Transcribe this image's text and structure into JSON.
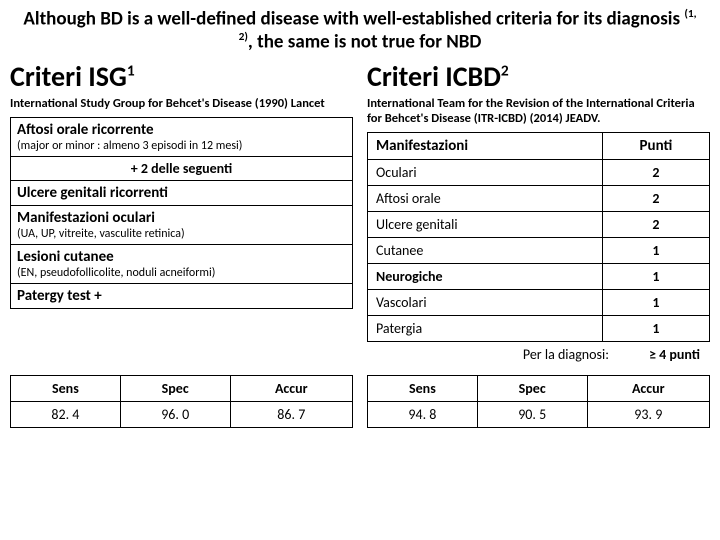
{
  "banner_html": "Although BD is a well-defined disease with well-established criteria for its diagnosis <sup>(1, 2)</sup>, the same is not true for NBD",
  "left": {
    "title_html": "Criteri ISG<sup>1</sup>",
    "subtitle": "International Study Group for Behcet's Disease (1990) Lancet",
    "rows": [
      {
        "major": "Aftosi orale ricorrente",
        "minor": "(major or minor : almeno 3 episodi in 12 mesi)"
      },
      {
        "center": "+ 2 delle seguenti"
      },
      {
        "major": "Ulcere genitali ricorrenti"
      },
      {
        "major": "Manifestazioni oculari",
        "minor": "(UA, UP, vitreite, vasculite retinica)"
      },
      {
        "major": "Lesioni cutanee",
        "minor": "(EN, pseudofollicolite, noduli acneiformi)"
      },
      {
        "major": "Patergy test +"
      }
    ],
    "metrics": {
      "headers": [
        "Sens",
        "Spec",
        "Accur"
      ],
      "values": [
        "82. 4",
        "96. 0",
        "86. 7"
      ]
    }
  },
  "right": {
    "title_html": "Criteri ICBD<sup>2</sup>",
    "subtitle": "International Team for the Revision of the International Criteria for Behcet's Disease (ITR-ICBD) (2014) JEADV.",
    "header": [
      "Manifestazioni",
      "Punti"
    ],
    "rows": [
      {
        "label": "Oculari",
        "pts": "2",
        "bold": false
      },
      {
        "label": "Aftosi orale",
        "pts": "2",
        "bold": false
      },
      {
        "label": "Ulcere genitali",
        "pts": "2",
        "bold": false
      },
      {
        "label": "Cutanee",
        "pts": "1",
        "bold": false
      },
      {
        "label": "Neurogiche",
        "pts": "1",
        "bold": true
      },
      {
        "label": "Vascolari",
        "pts": "1",
        "bold": false
      },
      {
        "label": "Patergia",
        "pts": "1",
        "bold": false
      }
    ],
    "diag_label": "Per la diagnosi:",
    "diag_value": "≥ 4 punti",
    "metrics": {
      "headers": [
        "Sens",
        "Spec",
        "Accur"
      ],
      "values": [
        "94. 8",
        "90. 5",
        "93. 9"
      ]
    }
  }
}
